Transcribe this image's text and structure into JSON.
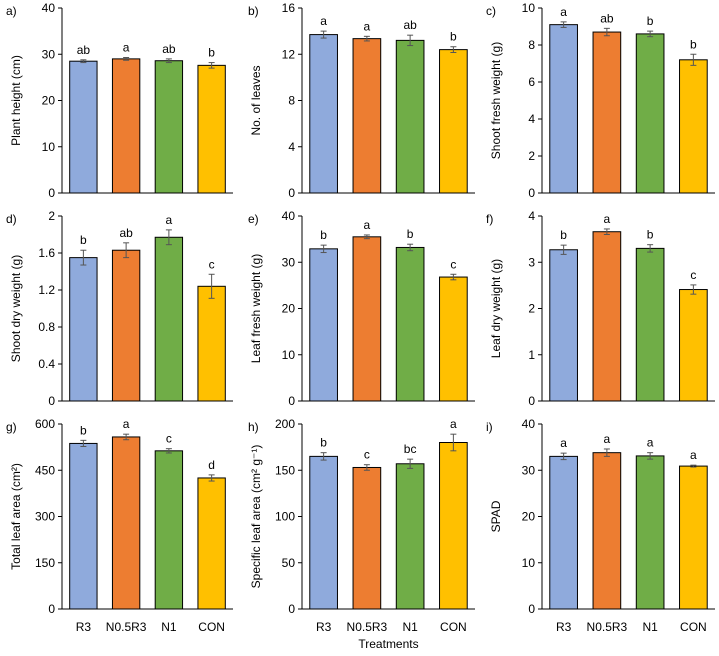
{
  "figure": {
    "categories": [
      "R3",
      "N0.5R3",
      "N1",
      "CON"
    ],
    "colors": [
      "#8faadc",
      "#ed7d31",
      "#70ad47",
      "#ffc000"
    ],
    "xlabel": "Treatments"
  },
  "chart_data": [
    {
      "type": "bar",
      "panel": "a)",
      "ylabel": "Plant height (cm)",
      "ylim": [
        0,
        40
      ],
      "yticks": [
        0,
        10,
        20,
        30,
        40
      ],
      "tick_labels": [
        "0",
        "10",
        "20",
        "30",
        "40"
      ],
      "categories": [
        "R3",
        "N0.5R3",
        "N1",
        "CON"
      ],
      "values": [
        28.5,
        29.0,
        28.6,
        27.6
      ],
      "errors": [
        0.3,
        0.3,
        0.4,
        0.6
      ],
      "letters": [
        "ab",
        "a",
        "ab",
        "b"
      ]
    },
    {
      "type": "bar",
      "panel": "b)",
      "ylabel": "No. of leaves",
      "ylim": [
        0,
        16
      ],
      "yticks": [
        0,
        4,
        8,
        12,
        16
      ],
      "tick_labels": [
        "0",
        "4",
        "8",
        "12",
        "16"
      ],
      "categories": [
        "R3",
        "N0.5R3",
        "N1",
        "CON"
      ],
      "values": [
        13.7,
        13.35,
        13.2,
        12.4
      ],
      "errors": [
        0.3,
        0.2,
        0.45,
        0.25
      ],
      "letters": [
        "a",
        "a",
        "ab",
        "b"
      ]
    },
    {
      "type": "bar",
      "panel": "c)",
      "ylabel": "Shoot fresh weight (g)",
      "ylim": [
        0,
        10
      ],
      "yticks": [
        0,
        2,
        4,
        6,
        8,
        10
      ],
      "tick_labels": [
        "0",
        "2",
        "4",
        "6",
        "8",
        "10"
      ],
      "categories": [
        "R3",
        "N0.5R3",
        "N1",
        "CON"
      ],
      "values": [
        9.1,
        8.7,
        8.6,
        7.2
      ],
      "errors": [
        0.15,
        0.2,
        0.15,
        0.3
      ],
      "letters": [
        "a",
        "ab",
        "b",
        "b"
      ]
    },
    {
      "type": "bar",
      "panel": "d)",
      "ylabel": "Shoot dry weight (g)",
      "ylim": [
        0,
        2
      ],
      "yticks": [
        0,
        0.4,
        0.8,
        1.2,
        1.6,
        2
      ],
      "tick_labels": [
        "0",
        "0.4",
        "0.8",
        "1.2",
        "1.6",
        "2"
      ],
      "categories": [
        "R3",
        "N0.5R3",
        "N1",
        "CON"
      ],
      "values": [
        1.55,
        1.63,
        1.77,
        1.24
      ],
      "errors": [
        0.08,
        0.08,
        0.08,
        0.13
      ],
      "letters": [
        "b",
        "ab",
        "a",
        "c"
      ]
    },
    {
      "type": "bar",
      "panel": "e)",
      "ylabel": "Leaf fresh weight (g)",
      "ylim": [
        0,
        40
      ],
      "yticks": [
        0,
        10,
        20,
        30,
        40
      ],
      "tick_labels": [
        "0",
        "10",
        "20",
        "30",
        "40"
      ],
      "categories": [
        "R3",
        "N0.5R3",
        "N1",
        "CON"
      ],
      "values": [
        32.9,
        35.5,
        33.2,
        26.8
      ],
      "errors": [
        0.8,
        0.4,
        0.7,
        0.6
      ],
      "letters": [
        "b",
        "a",
        "b",
        "c"
      ]
    },
    {
      "type": "bar",
      "panel": "f)",
      "ylabel": "Leaf dry weight (g)",
      "ylim": [
        0,
        4
      ],
      "yticks": [
        0,
        1,
        2,
        3,
        4
      ],
      "tick_labels": [
        "0",
        "1",
        "2",
        "3",
        "4"
      ],
      "categories": [
        "R3",
        "N0.5R3",
        "N1",
        "CON"
      ],
      "values": [
        3.27,
        3.66,
        3.3,
        2.41
      ],
      "errors": [
        0.1,
        0.06,
        0.08,
        0.1
      ],
      "letters": [
        "b",
        "a",
        "b",
        "c"
      ]
    },
    {
      "type": "bar",
      "panel": "g)",
      "ylabel": "Total leaf area (cm²)",
      "ylim": [
        0,
        600
      ],
      "yticks": [
        0,
        150,
        300,
        450,
        600
      ],
      "tick_labels": [
        "0",
        "150",
        "300",
        "450",
        "600"
      ],
      "categories": [
        "R3",
        "N0.5R3",
        "N1",
        "CON"
      ],
      "values": [
        537,
        558,
        513,
        425
      ],
      "errors": [
        10,
        9,
        7,
        10
      ],
      "letters": [
        "b",
        "a",
        "c",
        "d"
      ]
    },
    {
      "type": "bar",
      "panel": "h)",
      "ylabel": "Specific leaf area (cm² g⁻¹)",
      "ylim": [
        0,
        200
      ],
      "yticks": [
        0,
        50,
        100,
        150,
        200
      ],
      "tick_labels": [
        "0",
        "50",
        "100",
        "150",
        "200"
      ],
      "categories": [
        "R3",
        "N0.5R3",
        "N1",
        "CON"
      ],
      "values": [
        165,
        153,
        157,
        180
      ],
      "errors": [
        4,
        3,
        5,
        9
      ],
      "letters": [
        "b",
        "c",
        "bc",
        "a"
      ]
    },
    {
      "type": "bar",
      "panel": "i)",
      "ylabel": "SPAD",
      "ylim": [
        0,
        40
      ],
      "yticks": [
        0,
        10,
        20,
        30,
        40
      ],
      "tick_labels": [
        "0",
        "10",
        "20",
        "30",
        "40"
      ],
      "categories": [
        "R3",
        "N0.5R3",
        "N1",
        "CON"
      ],
      "values": [
        33.0,
        33.8,
        33.1,
        30.9
      ],
      "errors": [
        0.7,
        0.8,
        0.7,
        0.2
      ],
      "letters": [
        "a",
        "a",
        "a",
        "a"
      ]
    }
  ]
}
